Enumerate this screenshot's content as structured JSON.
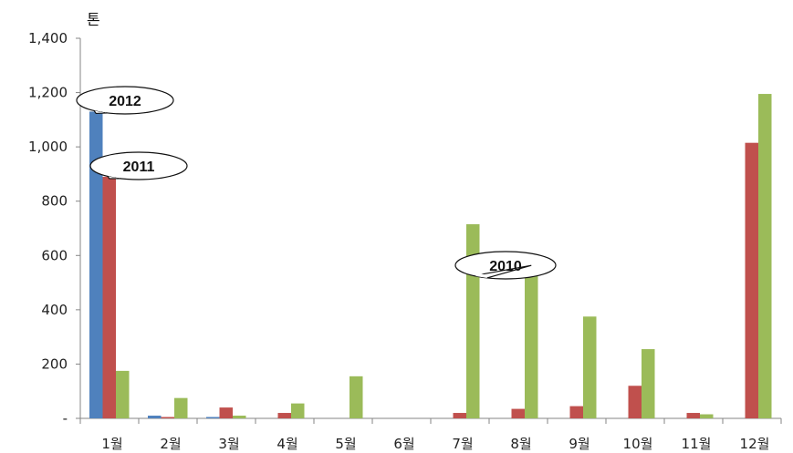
{
  "chart_data": {
    "type": "bar",
    "ylabel": "톤",
    "ylim": [
      0,
      1400
    ],
    "yticks": [
      0,
      200,
      400,
      600,
      800,
      1000,
      1200,
      1400
    ],
    "ytick_labels": [
      "-",
      "200",
      "400",
      "600",
      "800",
      "1,000",
      "1,200",
      "1,400"
    ],
    "categories": [
      "1월",
      "2월",
      "3월",
      "4월",
      "5월",
      "6월",
      "7월",
      "8월",
      "9월",
      "10월",
      "11월",
      "12월"
    ],
    "series": [
      {
        "name": "2012",
        "color": "#4f81bd",
        "values": [
          1130,
          10,
          5,
          0,
          0,
          0,
          0,
          0,
          0,
          0,
          0,
          0
        ]
      },
      {
        "name": "2011",
        "color": "#c0504d",
        "values": [
          890,
          5,
          40,
          20,
          0,
          0,
          20,
          35,
          45,
          120,
          20,
          1015
        ]
      },
      {
        "name": "2010",
        "color": "#9bbb59",
        "values": [
          175,
          75,
          10,
          55,
          155,
          0,
          715,
          570,
          375,
          255,
          15,
          1195
        ]
      }
    ],
    "grid": false,
    "annotations": [
      {
        "text": "2012",
        "series": "2012",
        "category": "1월"
      },
      {
        "text": "2011",
        "series": "2011",
        "category": "1월"
      },
      {
        "text": "2010",
        "series": "2010",
        "category": "8월"
      }
    ]
  }
}
